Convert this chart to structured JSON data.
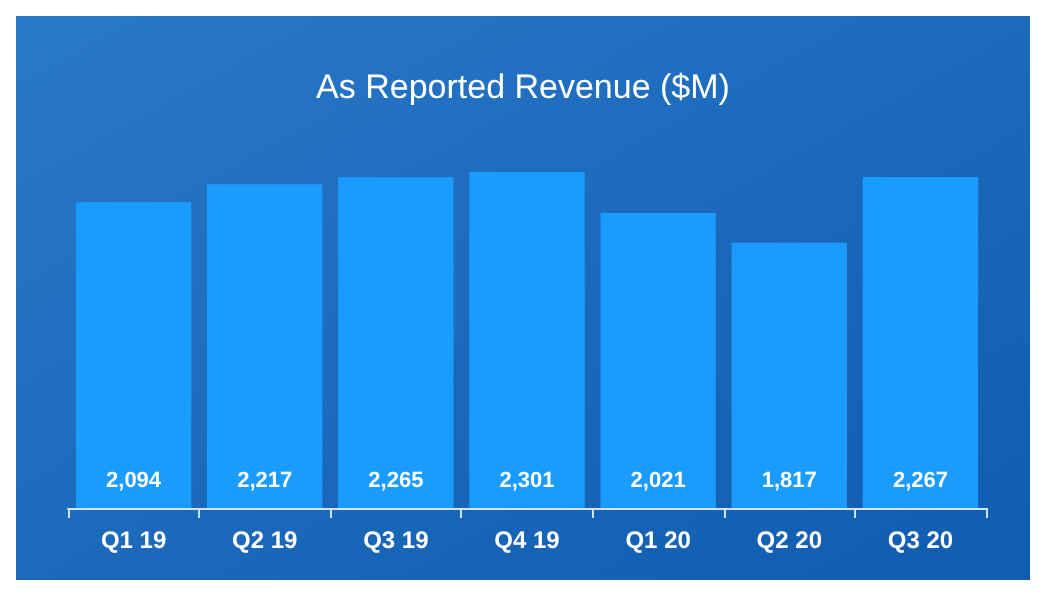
{
  "chart_data": {
    "type": "bar",
    "title": "As Reported Revenue ($M)",
    "categories": [
      "Q1 19",
      "Q2 19",
      "Q3 19",
      "Q4 19",
      "Q1 20",
      "Q2 20",
      "Q3 20"
    ],
    "values": [
      2094,
      2217,
      2265,
      2301,
      2021,
      1817,
      2267
    ],
    "color": "#1a9cff",
    "value_labels": [
      "2,094",
      "2,217",
      "2,265",
      "2,301",
      "2,021",
      "1,817",
      "2,267"
    ]
  }
}
